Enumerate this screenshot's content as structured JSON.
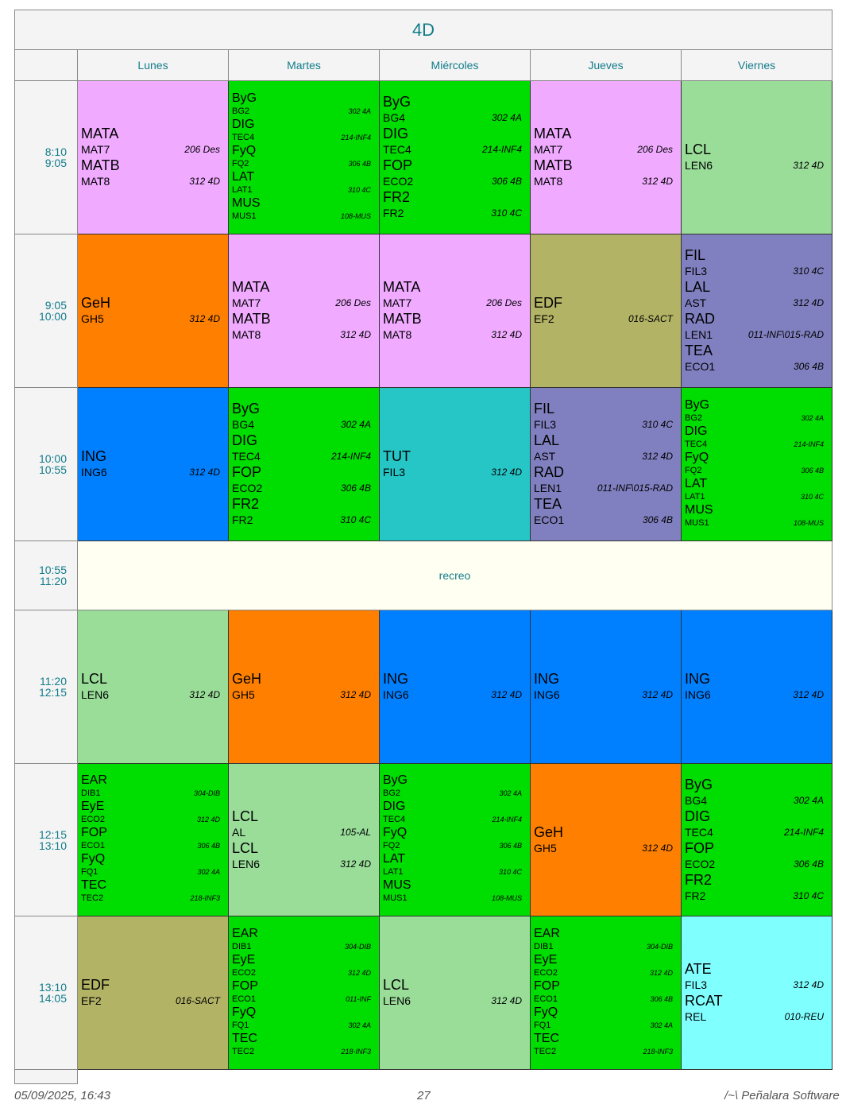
{
  "title": "4D",
  "days": [
    "Lunes",
    "Martes",
    "Miércoles",
    "Jueves",
    "Viernes"
  ],
  "colors": {
    "MATA": "#f0aaff",
    "green": "#00dd00",
    "LCL": "#99dd99",
    "GeH": "#ff8000",
    "EDF": "#b3b366",
    "FIL": "#8080c0",
    "ING": "#0080ff",
    "TUT": "#26c6c6",
    "ATE": "#80ffff"
  },
  "rows": [
    {
      "start": "8:10",
      "end": "9:05",
      "cells": [
        {
          "c": "MATA",
          "e": [
            [
              "MATA",
              "MAT7",
              "206 Des"
            ],
            [
              "MATB",
              "MAT8",
              "312 4D"
            ]
          ]
        },
        {
          "c": "green",
          "e": [
            [
              "ByG",
              "BG2",
              "302 4A"
            ],
            [
              "DIG",
              "TEC4",
              "214-INF4"
            ],
            [
              "FyQ",
              "FQ2",
              "306 4B"
            ],
            [
              "LAT",
              "LAT1",
              "310 4C"
            ],
            [
              "MUS",
              "MUS1",
              "108-MUS"
            ]
          ]
        },
        {
          "c": "green",
          "e": [
            [
              "ByG",
              "BG4",
              "302 4A"
            ],
            [
              "DIG",
              "TEC4",
              "214-INF4"
            ],
            [
              "FOP",
              "ECO2",
              "306 4B"
            ],
            [
              "FR2",
              "FR2",
              "310 4C"
            ]
          ]
        },
        {
          "c": "MATA",
          "e": [
            [
              "MATA",
              "MAT7",
              "206 Des"
            ],
            [
              "MATB",
              "MAT8",
              "312 4D"
            ]
          ]
        },
        {
          "c": "LCL",
          "e": [
            [
              "LCL",
              "LEN6",
              "312 4D"
            ]
          ]
        }
      ]
    },
    {
      "start": "9:05",
      "end": "10:00",
      "cells": [
        {
          "c": "GeH",
          "e": [
            [
              "GeH",
              "GH5",
              "312 4D"
            ]
          ]
        },
        {
          "c": "MATA",
          "e": [
            [
              "MATA",
              "MAT7",
              "206 Des"
            ],
            [
              "MATB",
              "MAT8",
              "312 4D"
            ]
          ]
        },
        {
          "c": "MATA",
          "e": [
            [
              "MATA",
              "MAT7",
              "206 Des"
            ],
            [
              "MATB",
              "MAT8",
              "312 4D"
            ]
          ]
        },
        {
          "c": "EDF",
          "e": [
            [
              "EDF",
              "EF2",
              "016-SACT"
            ]
          ]
        },
        {
          "c": "FIL",
          "e": [
            [
              "FIL",
              "FIL3",
              "310 4C"
            ],
            [
              "LAL",
              "AST",
              "312 4D"
            ],
            [
              "RAD",
              "LEN1",
              "011-INF\\015-RAD"
            ],
            [
              "TEA",
              "ECO1",
              "306 4B"
            ]
          ]
        }
      ]
    },
    {
      "start": "10:00",
      "end": "10:55",
      "cells": [
        {
          "c": "ING",
          "e": [
            [
              "ING",
              "ING6",
              "312 4D"
            ]
          ]
        },
        {
          "c": "green",
          "e": [
            [
              "ByG",
              "BG4",
              "302 4A"
            ],
            [
              "DIG",
              "TEC4",
              "214-INF4"
            ],
            [
              "FOP",
              "ECO2",
              "306 4B"
            ],
            [
              "FR2",
              "FR2",
              "310 4C"
            ]
          ]
        },
        {
          "c": "TUT",
          "e": [
            [
              "TUT",
              "FIL3",
              "312 4D"
            ]
          ]
        },
        {
          "c": "FIL",
          "e": [
            [
              "FIL",
              "FIL3",
              "310 4C"
            ],
            [
              "LAL",
              "AST",
              "312 4D"
            ],
            [
              "RAD",
              "LEN1",
              "011-INF\\015-RAD"
            ],
            [
              "TEA",
              "ECO1",
              "306 4B"
            ]
          ]
        },
        {
          "c": "green",
          "e": [
            [
              "ByG",
              "BG2",
              "302 4A"
            ],
            [
              "DIG",
              "TEC4",
              "214-INF4"
            ],
            [
              "FyQ",
              "FQ2",
              "306 4B"
            ],
            [
              "LAT",
              "LAT1",
              "310 4C"
            ],
            [
              "MUS",
              "MUS1",
              "108-MUS"
            ]
          ]
        }
      ]
    },
    {
      "start": "10:55",
      "end": "11:20",
      "break": "recreo"
    },
    {
      "start": "11:20",
      "end": "12:15",
      "cells": [
        {
          "c": "LCL",
          "e": [
            [
              "LCL",
              "LEN6",
              "312 4D"
            ]
          ]
        },
        {
          "c": "GeH",
          "e": [
            [
              "GeH",
              "GH5",
              "312 4D"
            ]
          ]
        },
        {
          "c": "ING",
          "e": [
            [
              "ING",
              "ING6",
              "312 4D"
            ]
          ]
        },
        {
          "c": "ING",
          "e": [
            [
              "ING",
              "ING6",
              "312 4D"
            ]
          ]
        },
        {
          "c": "ING",
          "e": [
            [
              "ING",
              "ING6",
              "312 4D"
            ]
          ]
        }
      ]
    },
    {
      "start": "12:15",
      "end": "13:10",
      "cells": [
        {
          "c": "green",
          "e": [
            [
              "EAR",
              "DIB1",
              "304-DIB"
            ],
            [
              "EyE",
              "ECO2",
              "312 4D"
            ],
            [
              "FOP",
              "ECO1",
              "306 4B"
            ],
            [
              "FyQ",
              "FQ1",
              "302 4A"
            ],
            [
              "TEC",
              "TEC2",
              "218-INF3"
            ]
          ]
        },
        {
          "c": "LCL",
          "e": [
            [
              "LCL",
              "AL",
              "105-AL"
            ],
            [
              "LCL",
              "LEN6",
              "312 4D"
            ]
          ]
        },
        {
          "c": "green",
          "e": [
            [
              "ByG",
              "BG2",
              "302 4A"
            ],
            [
              "DIG",
              "TEC4",
              "214-INF4"
            ],
            [
              "FyQ",
              "FQ2",
              "306 4B"
            ],
            [
              "LAT",
              "LAT1",
              "310 4C"
            ],
            [
              "MUS",
              "MUS1",
              "108-MUS"
            ]
          ]
        },
        {
          "c": "GeH",
          "e": [
            [
              "GeH",
              "GH5",
              "312 4D"
            ]
          ]
        },
        {
          "c": "green",
          "e": [
            [
              "ByG",
              "BG4",
              "302 4A"
            ],
            [
              "DIG",
              "TEC4",
              "214-INF4"
            ],
            [
              "FOP",
              "ECO2",
              "306 4B"
            ],
            [
              "FR2",
              "FR2",
              "310 4C"
            ]
          ]
        }
      ]
    },
    {
      "start": "13:10",
      "end": "14:05",
      "cells": [
        {
          "c": "EDF",
          "e": [
            [
              "EDF",
              "EF2",
              "016-SACT"
            ]
          ]
        },
        {
          "c": "green",
          "e": [
            [
              "EAR",
              "DIB1",
              "304-DIB"
            ],
            [
              "EyE",
              "ECO2",
              "312 4D"
            ],
            [
              "FOP",
              "ECO1",
              "011-INF"
            ],
            [
              "FyQ",
              "FQ1",
              "302 4A"
            ],
            [
              "TEC",
              "TEC2",
              "218-INF3"
            ]
          ]
        },
        {
          "c": "LCL",
          "e": [
            [
              "LCL",
              "LEN6",
              "312 4D"
            ]
          ]
        },
        {
          "c": "green",
          "e": [
            [
              "EAR",
              "DIB1",
              "304-DIB"
            ],
            [
              "EyE",
              "ECO2",
              "312 4D"
            ],
            [
              "FOP",
              "ECO1",
              "306 4B"
            ],
            [
              "FyQ",
              "FQ1",
              "302 4A"
            ],
            [
              "TEC",
              "TEC2",
              "218-INF3"
            ]
          ]
        },
        {
          "c": "ATE",
          "e": [
            [
              "ATE",
              "FIL3",
              "312 4D"
            ],
            [
              "RCAT",
              "REL",
              "010-REU"
            ]
          ]
        }
      ]
    }
  ],
  "footer": {
    "date": "05/09/2025, 16:43",
    "page": "27",
    "brand": "/~\\ Peñalara Software"
  }
}
